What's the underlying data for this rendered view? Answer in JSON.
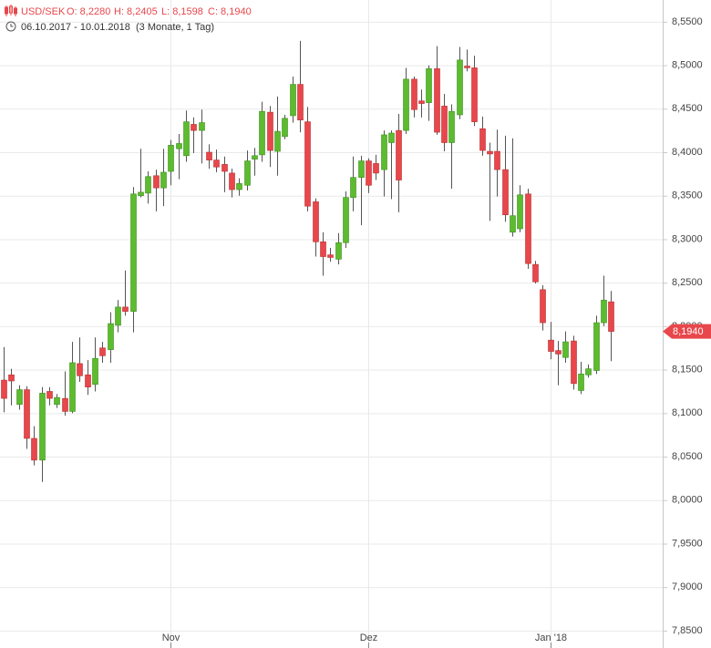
{
  "chart_data": {
    "type": "candlestick",
    "header": {
      "symbol": "USD/SEK",
      "open": "O: 8,2280",
      "high": "H: 8,2405",
      "low": "L: 8,1598",
      "close": "C: 8,1940",
      "date_range": "06.10.2017 - 10.01.2018",
      "period": "(3 Monate, 1 Tag)"
    },
    "last_price_label": "8,1940",
    "up_color": "#5dbb2f",
    "down_color": "#e8474b",
    "grid": true,
    "categories": [
      null,
      null,
      null,
      null,
      null,
      null,
      null,
      null,
      null,
      null,
      null,
      null,
      null,
      null,
      null,
      null,
      null,
      null,
      null,
      null,
      null,
      null,
      "Nov",
      null,
      null,
      null,
      null,
      null,
      null,
      null,
      null,
      null,
      null,
      null,
      null,
      null,
      null,
      null,
      null,
      null,
      null,
      null,
      null,
      null,
      null,
      null,
      null,
      null,
      "Dez",
      null,
      null,
      null,
      null,
      null,
      null,
      null,
      null,
      null,
      null,
      null,
      null,
      null,
      null,
      null,
      null,
      null,
      null,
      null,
      null,
      null,
      null,
      null,
      "Jan '18",
      null,
      null,
      null,
      null,
      null,
      null,
      null,
      null
    ],
    "open": [
      8.138,
      8.144,
      8.11,
      8.127,
      8.071,
      8.046,
      8.125,
      8.11,
      8.117,
      8.102,
      8.157,
      8.144,
      8.133,
      8.175,
      8.173,
      8.201,
      8.222,
      8.217,
      8.35,
      8.353,
      8.373,
      8.359,
      8.378,
      8.404,
      8.396,
      8.432,
      8.425,
      8.4,
      8.391,
      8.386,
      8.376,
      8.357,
      8.362,
      8.392,
      8.397,
      8.446,
      8.401,
      8.418,
      8.442,
      8.478,
      8.435,
      8.343,
      8.297,
      8.282,
      8.277,
      8.296,
      8.348,
      8.371,
      8.39,
      8.387,
      8.38,
      8.411,
      8.425,
      8.425,
      8.484,
      8.459,
      8.457,
      8.496,
      8.453,
      8.411,
      8.443,
      8.499,
      8.497,
      8.427,
      8.401,
      8.401,
      8.38,
      8.308,
      8.312,
      8.352,
      8.271,
      8.242,
      8.184,
      8.172,
      8.164,
      8.183,
      8.126,
      8.144,
      8.149,
      8.204,
      8.228
    ],
    "high": [
      8.176,
      8.151,
      8.132,
      8.131,
      8.085,
      8.13,
      8.13,
      8.122,
      8.148,
      8.182,
      8.187,
      8.161,
      8.187,
      8.182,
      8.216,
      8.23,
      8.264,
      8.36,
      8.404,
      8.378,
      8.38,
      8.404,
      8.414,
      8.421,
      8.448,
      8.44,
      8.449,
      8.409,
      8.403,
      8.395,
      8.381,
      8.37,
      8.402,
      8.405,
      8.458,
      8.453,
      8.464,
      8.443,
      8.487,
      8.528,
      8.452,
      8.347,
      8.308,
      8.29,
      8.307,
      8.355,
      8.395,
      8.396,
      8.393,
      8.397,
      8.425,
      8.425,
      8.444,
      8.497,
      8.487,
      8.472,
      8.5,
      8.522,
      8.467,
      8.455,
      8.521,
      8.518,
      8.511,
      8.441,
      8.411,
      8.426,
      8.419,
      8.416,
      8.362,
      8.358,
      8.275,
      8.247,
      8.205,
      8.183,
      8.194,
      8.189,
      8.159,
      8.156,
      8.212,
      8.258,
      8.2405
    ],
    "low": [
      8.101,
      8.109,
      8.104,
      8.059,
      8.04,
      8.021,
      8.109,
      8.106,
      8.097,
      8.1,
      8.136,
      8.121,
      8.125,
      8.158,
      8.158,
      8.193,
      8.212,
      8.193,
      8.348,
      8.341,
      8.332,
      8.338,
      8.362,
      8.369,
      8.389,
      8.399,
      8.387,
      8.381,
      8.377,
      8.354,
      8.348,
      8.35,
      8.356,
      8.373,
      8.389,
      8.383,
      8.373,
      8.415,
      8.434,
      8.423,
      8.332,
      8.28,
      8.258,
      8.274,
      8.271,
      8.29,
      8.332,
      8.316,
      8.353,
      8.368,
      8.349,
      8.346,
      8.331,
      8.421,
      8.44,
      8.44,
      8.436,
      8.42,
      8.401,
      8.358,
      8.438,
      8.493,
      8.43,
      8.396,
      8.321,
      8.349,
      8.32,
      8.303,
      8.308,
      8.266,
      8.249,
      8.195,
      8.162,
      8.132,
      8.158,
      8.127,
      8.122,
      8.141,
      8.145,
      8.2,
      8.1598
    ],
    "close": [
      8.117,
      8.137,
      8.127,
      8.071,
      8.046,
      8.123,
      8.117,
      8.118,
      8.102,
      8.158,
      8.143,
      8.13,
      8.163,
      8.166,
      8.203,
      8.222,
      8.217,
      8.352,
      8.354,
      8.372,
      8.359,
      8.377,
      8.408,
      8.41,
      8.435,
      8.425,
      8.434,
      8.391,
      8.383,
      8.378,
      8.357,
      8.364,
      8.39,
      8.396,
      8.447,
      8.402,
      8.424,
      8.439,
      8.478,
      8.437,
      8.338,
      8.297,
      8.28,
      8.279,
      8.296,
      8.348,
      8.371,
      8.39,
      8.362,
      8.376,
      8.42,
      8.422,
      8.368,
      8.484,
      8.449,
      8.456,
      8.496,
      8.423,
      8.411,
      8.447,
      8.506,
      8.497,
      8.435,
      8.402,
      8.398,
      8.38,
      8.328,
      8.327,
      8.351,
      8.272,
      8.251,
      8.204,
      8.171,
      8.168,
      8.182,
      8.134,
      8.145,
      8.151,
      8.204,
      8.23,
      8.194
    ],
    "ylim": [
      7.83,
      8.575
    ],
    "yticks": [
      {
        "value": 7.85,
        "label": "7,8500"
      },
      {
        "value": 7.9,
        "label": "7,9000"
      },
      {
        "value": 7.95,
        "label": "7,9500"
      },
      {
        "value": 8.0,
        "label": "8,0000"
      },
      {
        "value": 8.05,
        "label": "8,0500"
      },
      {
        "value": 8.1,
        "label": "8,1000"
      },
      {
        "value": 8.15,
        "label": "8,1500"
      },
      {
        "value": 8.2,
        "label": "8,2000"
      },
      {
        "value": 8.25,
        "label": "8,2500"
      },
      {
        "value": 8.3,
        "label": "8,3000"
      },
      {
        "value": 8.35,
        "label": "8,3500"
      },
      {
        "value": 8.4,
        "label": "8,4000"
      },
      {
        "value": 8.45,
        "label": "8,4500"
      },
      {
        "value": 8.5,
        "label": "8,5000"
      },
      {
        "value": 8.55,
        "label": "8,5500"
      }
    ]
  }
}
